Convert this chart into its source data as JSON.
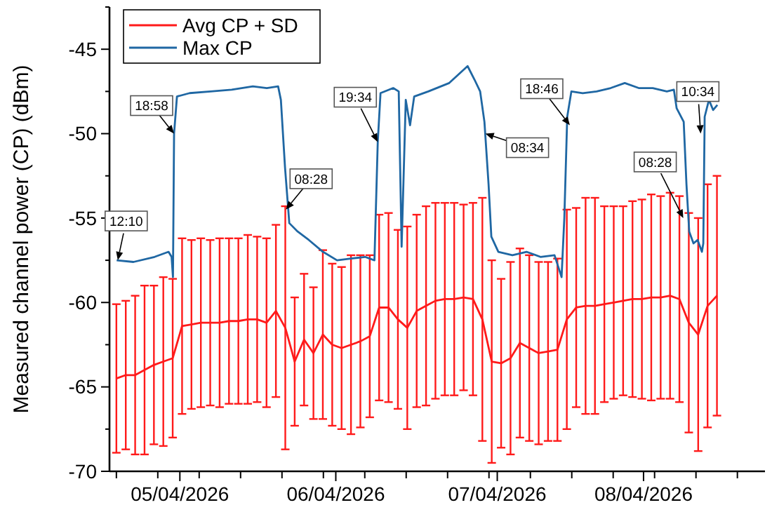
{
  "chart_data": {
    "type": "line",
    "ylabel": "Measured channel power (CP) (dBm)",
    "legend": "top left",
    "grid": false,
    "xlim": [
      "2026-04-04T11:10",
      "2026-04-07T18:20"
    ],
    "xticks": [
      {
        "value": "2026-04-04T12:00",
        "label": null
      },
      {
        "value": "2026-04-04T17:00",
        "label": null
      },
      {
        "value": "2026-04-04T19:40",
        "label": "05/04/2026"
      },
      {
        "value": "2026-04-04T22:00",
        "label": null
      },
      {
        "value": "2026-04-05T03:00",
        "label": null
      },
      {
        "value": "2026-04-05T08:00",
        "label": null
      },
      {
        "value": "2026-04-05T13:00",
        "label": null
      },
      {
        "value": "2026-04-05T14:30",
        "label": "06/04/2026"
      },
      {
        "value": "2026-04-05T18:00",
        "label": null
      },
      {
        "value": "2026-04-05T23:00",
        "label": null
      },
      {
        "value": "2026-04-06T04:00",
        "label": null
      },
      {
        "value": "2026-04-06T09:00",
        "label": null
      },
      {
        "value": "2026-04-06T10:00",
        "label": "07/04/2026"
      },
      {
        "value": "2026-04-06T14:00",
        "label": null
      },
      {
        "value": "2026-04-06T19:00",
        "label": null
      },
      {
        "value": "2026-04-07T00:00",
        "label": null
      },
      {
        "value": "2026-04-07T03:40",
        "label": "08/04/2026"
      },
      {
        "value": "2026-04-07T05:00",
        "label": null
      },
      {
        "value": "2026-04-07T10:00",
        "label": null
      },
      {
        "value": "2026-04-07T15:00",
        "label": null
      }
    ],
    "ylim": [
      -70,
      -42.5
    ],
    "yticks": [
      -70,
      {
        "value": -67.5,
        "label": null
      },
      -65,
      {
        "value": -62.5,
        "label": null
      },
      -60,
      {
        "value": -57.5,
        "label": null
      },
      -55,
      {
        "value": -52.5,
        "label": null
      },
      -50,
      {
        "value": -47.5,
        "label": null
      },
      -45,
      {
        "value": -42.5,
        "label": null
      }
    ],
    "series": [
      {
        "name": "Avg CP + SD",
        "color": "#ff1a1a",
        "x": [
          "2026-04-04T12:00",
          "2026-04-04T13:08",
          "2026-04-04T14:16",
          "2026-04-04T15:24",
          "2026-04-04T16:32",
          "2026-04-04T17:40",
          "2026-04-04T18:48",
          "2026-04-04T19:56",
          "2026-04-04T21:04",
          "2026-04-04T22:12",
          "2026-04-04T23:20",
          "2026-04-05T00:28",
          "2026-04-05T01:36",
          "2026-04-05T02:44",
          "2026-04-05T03:52",
          "2026-04-05T05:00",
          "2026-04-05T06:08",
          "2026-04-05T07:16",
          "2026-04-05T08:24",
          "2026-04-05T09:32",
          "2026-04-05T10:40",
          "2026-04-05T11:48",
          "2026-04-05T12:56",
          "2026-04-05T14:04",
          "2026-04-05T15:12",
          "2026-04-05T16:20",
          "2026-04-05T17:28",
          "2026-04-05T18:36",
          "2026-04-05T19:44",
          "2026-04-05T20:52",
          "2026-04-05T22:00",
          "2026-04-05T23:08",
          "2026-04-06T00:16",
          "2026-04-06T01:24",
          "2026-04-06T02:32",
          "2026-04-06T03:40",
          "2026-04-06T04:48",
          "2026-04-06T05:56",
          "2026-04-06T07:04",
          "2026-04-06T08:12",
          "2026-04-06T09:20",
          "2026-04-06T10:28",
          "2026-04-06T11:36",
          "2026-04-06T12:44",
          "2026-04-06T13:52",
          "2026-04-06T15:00",
          "2026-04-06T16:08",
          "2026-04-06T17:16",
          "2026-04-06T18:24",
          "2026-04-06T19:32",
          "2026-04-06T20:40",
          "2026-04-06T21:48",
          "2026-04-06T22:56",
          "2026-04-07T00:04",
          "2026-04-07T01:12",
          "2026-04-07T02:20",
          "2026-04-07T03:28",
          "2026-04-07T04:36",
          "2026-04-07T05:44",
          "2026-04-07T06:52",
          "2026-04-07T08:00",
          "2026-04-07T09:08",
          "2026-04-07T10:16",
          "2026-04-07T11:24",
          "2026-04-07T12:32"
        ],
        "values": [
          -64.5,
          -64.3,
          -64.3,
          -64.0,
          -63.7,
          -63.5,
          -63.3,
          -61.4,
          -61.3,
          -61.2,
          -61.2,
          -61.2,
          -61.1,
          -61.1,
          -61.0,
          -61.0,
          -61.2,
          -60.5,
          -61.5,
          -63.5,
          -62.2,
          -63.0,
          -61.9,
          -62.5,
          -62.7,
          -62.5,
          -62.3,
          -62.0,
          -60.3,
          -60.3,
          -61.0,
          -61.5,
          -60.5,
          -60.2,
          -59.9,
          -59.8,
          -59.8,
          -59.7,
          -59.8,
          -61.0,
          -63.5,
          -63.6,
          -63.3,
          -62.4,
          -62.7,
          -63.0,
          -62.9,
          -62.8,
          -61.0,
          -60.3,
          -60.2,
          -60.2,
          -60.1,
          -60.0,
          -59.9,
          -59.8,
          -59.8,
          -59.7,
          -59.7,
          -59.6,
          -59.8,
          -61.2,
          -61.9,
          -60.2,
          -59.6
        ],
        "errors": [
          4.4,
          4.4,
          4.7,
          5.0,
          4.7,
          5.0,
          4.7,
          5.2,
          5.0,
          5.0,
          4.9,
          5.0,
          4.9,
          4.9,
          5.0,
          4.9,
          5.0,
          5.1,
          7.2,
          3.8,
          3.9,
          3.9,
          5.0,
          4.8,
          4.8,
          5.3,
          5.1,
          4.8,
          5.5,
          5.6,
          5.3,
          6.0,
          5.7,
          5.9,
          5.8,
          5.7,
          5.7,
          5.5,
          5.7,
          7.2,
          6.0,
          5.0,
          5.7,
          5.6,
          5.5,
          5.4,
          5.3,
          5.4,
          6.5,
          5.9,
          6.4,
          6.4,
          5.8,
          5.7,
          5.6,
          5.8,
          5.9,
          6.1,
          6.0,
          6.1,
          6.1,
          6.5,
          6.9,
          7.2,
          7.1
        ]
      },
      {
        "name": "Max CP",
        "color": "#1f67a3",
        "x": [
          "2026-04-04T12:02",
          "2026-04-04T14:04",
          "2026-04-04T16:37",
          "2026-04-04T18:18",
          "2026-04-04T18:40",
          "2026-04-04T18:50",
          "2026-04-04T18:58",
          "2026-04-04T19:19",
          "2026-04-04T20:51",
          "2026-04-04T23:23",
          "2026-04-05T01:56",
          "2026-04-05T04:29",
          "2026-04-05T06:10",
          "2026-04-05T07:32",
          "2026-04-05T07:52",
          "2026-04-05T08:22",
          "2026-04-05T08:53",
          "2026-04-05T09:54",
          "2026-04-05T11:15",
          "2026-04-05T12:57",
          "2026-04-05T14:39",
          "2026-04-05T16:20",
          "2026-04-05T18:02",
          "2026-04-05T19:10",
          "2026-04-05T19:34",
          "2026-04-05T19:54",
          "2026-04-05T21:26",
          "2026-04-05T22:06",
          "2026-04-05T22:27",
          "2026-04-05T22:57",
          "2026-04-05T23:28",
          "2026-04-05T23:58",
          "2026-04-06T01:40",
          "2026-04-06T04:12",
          "2026-04-06T06:25",
          "2026-04-06T07:15",
          "2026-04-06T07:56",
          "2026-04-06T08:27",
          "2026-04-06T08:57",
          "2026-04-06T09:17",
          "2026-04-06T10:08",
          "2026-04-06T11:50",
          "2026-04-06T13:32",
          "2026-04-06T15:13",
          "2026-04-06T16:55",
          "2026-04-06T17:46",
          "2026-04-06T18:06",
          "2026-04-06T18:27",
          "2026-04-06T18:57",
          "2026-04-06T20:19",
          "2026-04-06T22:00",
          "2026-04-06T23:42",
          "2026-04-07T01:24",
          "2026-04-07T03:05",
          "2026-04-07T04:47",
          "2026-04-07T06:29",
          "2026-04-07T07:20",
          "2026-04-07T07:40",
          "2026-04-07T08:31",
          "2026-04-07T08:51",
          "2026-04-07T09:11",
          "2026-04-07T09:42",
          "2026-04-07T10:12",
          "2026-04-07T10:43",
          "2026-04-07T10:53",
          "2026-04-07T11:03",
          "2026-04-07T11:34",
          "2026-04-07T12:04",
          "2026-04-07T12:35"
        ],
        "values": [
          -57.5,
          -57.6,
          -57.3,
          -57.0,
          -57.3,
          -58.5,
          -50.0,
          -47.8,
          -47.6,
          -47.5,
          -47.4,
          -47.2,
          -47.3,
          -47.2,
          -48.0,
          -52.0,
          -55.3,
          -55.8,
          -56.3,
          -57.0,
          -57.5,
          -57.4,
          -57.3,
          -57.5,
          -50.5,
          -47.6,
          -47.3,
          -47.5,
          -56.7,
          -48.0,
          -49.5,
          -47.8,
          -47.5,
          -47.0,
          -46.0,
          -46.8,
          -47.5,
          -49.3,
          -53.0,
          -56.1,
          -57.0,
          -57.2,
          -57.0,
          -57.3,
          -57.2,
          -58.5,
          -55.0,
          -49.0,
          -47.5,
          -47.6,
          -47.5,
          -47.3,
          -47.0,
          -47.3,
          -47.3,
          -47.5,
          -47.4,
          -48.5,
          -49.3,
          -53.0,
          -55.8,
          -56.5,
          -56.3,
          -57.0,
          -56.5,
          -49.0,
          -48.0,
          -48.6,
          -48.3
        ]
      }
    ],
    "annotations": [
      {
        "text": "12:10",
        "x": "2026-04-04T12:10",
        "y": -57.5
      },
      {
        "text": "18:58",
        "x": "2026-04-04T18:58",
        "y": -50.0
      },
      {
        "text": "08:28",
        "x": "2026-04-05T08:28",
        "y": -54.5
      },
      {
        "text": "19:34",
        "x": "2026-04-05T19:34",
        "y": -50.5
      },
      {
        "text": "08:34",
        "x": "2026-04-06T08:34",
        "y": -50.0
      },
      {
        "text": "18:46",
        "x": "2026-04-06T18:46",
        "y": -49.5
      },
      {
        "text": "08:28",
        "x": "2026-04-07T08:28",
        "y": -55.0
      },
      {
        "text": "10:34",
        "x": "2026-04-07T10:34",
        "y": -50.0
      }
    ]
  }
}
